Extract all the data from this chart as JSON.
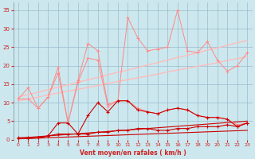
{
  "xlabel": "Vent moyen/en rafales ( km/h )",
  "bg_color": "#cce8ee",
  "grid_color": "#99bbcc",
  "text_color": "#cc2222",
  "xlim": [
    -0.5,
    23.5
  ],
  "ylim": [
    0,
    37
  ],
  "xticks": [
    0,
    1,
    2,
    3,
    4,
    5,
    6,
    7,
    8,
    9,
    10,
    11,
    12,
    13,
    14,
    15,
    16,
    17,
    18,
    19,
    20,
    21,
    22,
    23
  ],
  "yticks": [
    0,
    5,
    10,
    15,
    20,
    25,
    30,
    35
  ],
  "line_pink1": [
    11.0,
    14.0,
    8.5,
    11.5,
    19.5,
    4.5,
    16.0,
    26.0,
    24.0,
    9.5,
    10.5,
    33.0,
    27.5,
    24.0,
    24.5,
    25.0,
    35.0,
    24.0,
    23.5,
    26.5,
    21.5,
    18.5,
    20.0,
    23.5
  ],
  "line_pink2": [
    11.0,
    11.0,
    8.5,
    11.5,
    18.0,
    4.5,
    15.5,
    22.0,
    21.5,
    9.0,
    10.5,
    10.5,
    8.5,
    7.5,
    7.0,
    8.0,
    8.5,
    8.0,
    6.5,
    6.0,
    6.0,
    5.5,
    4.0,
    4.5
  ],
  "regr_pink1": [
    11.5,
    12.2,
    12.8,
    13.5,
    14.2,
    14.8,
    15.5,
    16.2,
    16.8,
    17.5,
    18.2,
    18.8,
    19.5,
    20.2,
    20.8,
    21.5,
    22.2,
    22.8,
    23.5,
    24.2,
    24.8,
    25.5,
    26.2,
    26.8
  ],
  "regr_pink2": [
    10.5,
    11.0,
    11.5,
    12.1,
    12.6,
    13.1,
    13.6,
    14.1,
    14.6,
    15.2,
    15.7,
    16.2,
    16.7,
    17.2,
    17.7,
    18.3,
    18.8,
    19.3,
    19.8,
    20.3,
    20.8,
    21.4,
    21.9,
    22.4
  ],
  "line_red1": [
    0.5,
    0.5,
    0.5,
    1.0,
    4.5,
    4.5,
    1.5,
    6.5,
    10.0,
    7.5,
    10.5,
    10.5,
    8.0,
    7.5,
    7.0,
    8.0,
    8.5,
    8.0,
    6.5,
    6.0,
    6.0,
    5.5,
    3.5,
    4.5
  ],
  "line_red2": [
    0.3,
    0.3,
    0.5,
    1.0,
    1.5,
    1.5,
    1.5,
    1.5,
    2.0,
    2.0,
    2.5,
    2.5,
    3.0,
    3.0,
    2.5,
    2.5,
    3.0,
    3.0,
    3.5,
    3.5,
    3.5,
    4.0,
    3.5,
    4.5
  ],
  "regr_red1": [
    0.4,
    0.6,
    0.8,
    1.0,
    1.2,
    1.4,
    1.6,
    1.8,
    2.0,
    2.2,
    2.4,
    2.6,
    2.8,
    3.0,
    3.2,
    3.4,
    3.6,
    3.8,
    4.0,
    4.2,
    4.4,
    4.6,
    4.8,
    5.0
  ],
  "regr_red2": [
    0.2,
    0.3,
    0.4,
    0.5,
    0.6,
    0.7,
    0.8,
    0.9,
    1.0,
    1.1,
    1.2,
    1.3,
    1.4,
    1.5,
    1.6,
    1.7,
    1.8,
    1.9,
    2.0,
    2.1,
    2.2,
    2.3,
    2.4,
    2.5
  ]
}
